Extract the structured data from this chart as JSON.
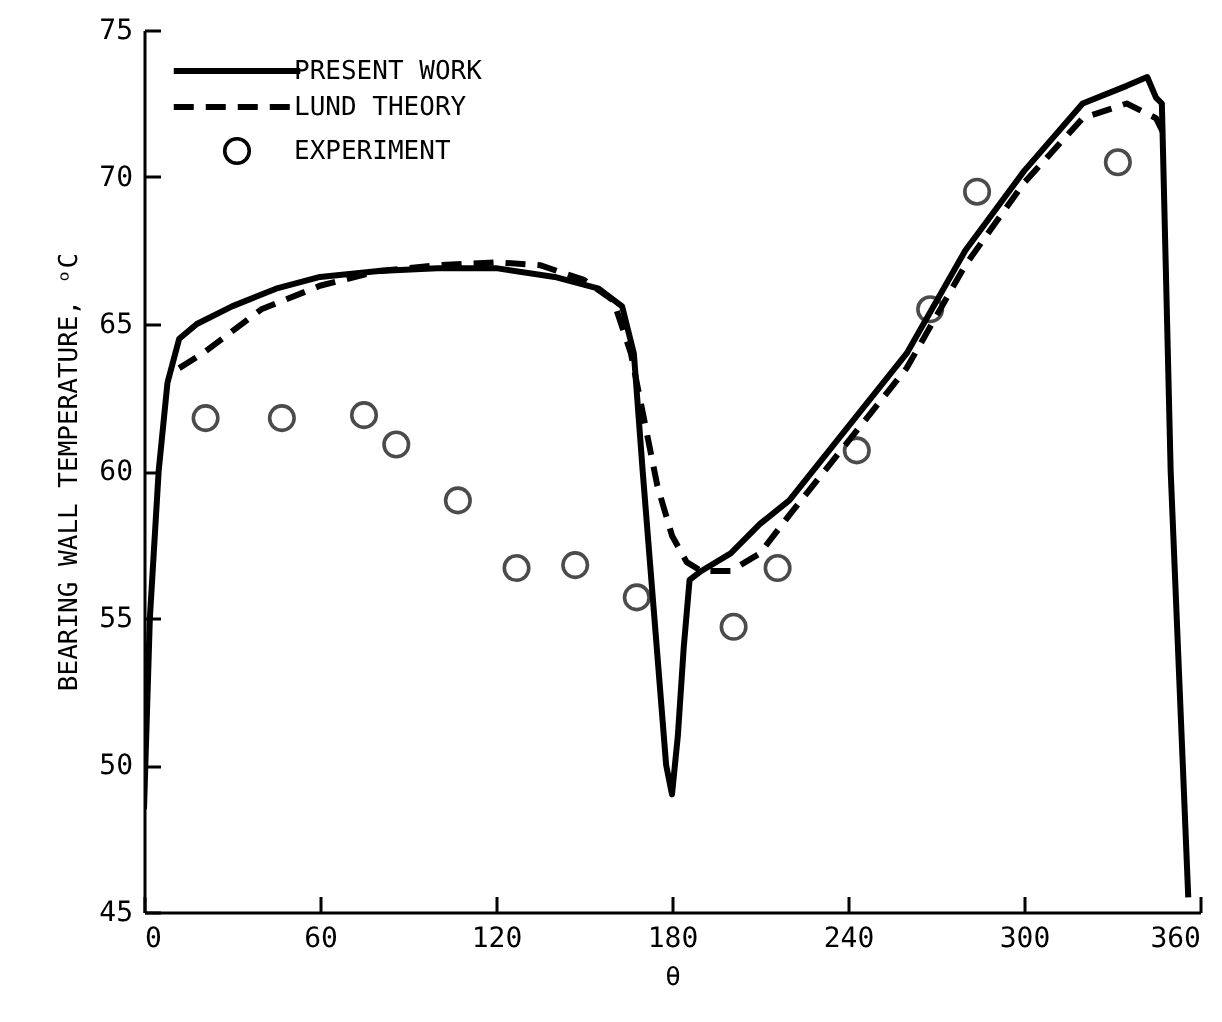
{
  "chart_data": {
    "type": "line",
    "xlabel": "θ",
    "ylabel": "BEARING WALL TEMPERATURE, ᵒC",
    "xlim": [
      0,
      360
    ],
    "xticks": [
      0,
      60,
      120,
      180,
      240,
      300,
      360
    ],
    "ylim": [
      45,
      75
    ],
    "yticks": [
      45,
      50,
      55,
      60,
      65,
      70,
      75
    ],
    "grid": false,
    "legend": "top left",
    "series": [
      {
        "name": "PRESENT WORK",
        "line_style": "solid",
        "color": "#000000",
        "x": [
          0,
          2,
          5,
          8,
          12,
          18,
          30,
          45,
          60,
          80,
          100,
          120,
          140,
          155,
          163,
          167,
          170,
          174,
          178,
          180,
          182,
          184,
          186,
          190,
          200,
          210,
          220,
          240,
          260,
          280,
          300,
          320,
          335,
          342,
          345,
          347,
          350,
          356
        ],
        "values": [
          48.5,
          55,
          60,
          63,
          64.5,
          65,
          65.6,
          66.2,
          66.6,
          66.8,
          66.9,
          66.9,
          66.6,
          66.2,
          65.6,
          64,
          60,
          55,
          50,
          49,
          51,
          54,
          56.3,
          56.6,
          57.2,
          58.2,
          59,
          61.5,
          64,
          67.5,
          70.2,
          72.5,
          73.1,
          73.4,
          72.7,
          72.5,
          60,
          45.5
        ]
      },
      {
        "name": "LUND THEORY",
        "line_style": "dashed",
        "color": "#000000",
        "x": [
          12,
          20,
          40,
          60,
          80,
          100,
          120,
          135,
          150,
          160,
          166,
          170,
          175,
          180,
          185,
          190,
          200,
          210,
          220,
          240,
          260,
          280,
          300,
          320,
          335,
          345,
          348
        ],
        "values": [
          63.5,
          64,
          65.5,
          66.3,
          66.8,
          67,
          67.1,
          67,
          66.5,
          65.8,
          64,
          62,
          59.5,
          57.8,
          56.9,
          56.6,
          56.6,
          57.2,
          58.5,
          61,
          63.5,
          67,
          69.8,
          72,
          72.5,
          72,
          71.4
        ]
      },
      {
        "name": "EXPERIMENT",
        "type": "scatter",
        "marker": "circle",
        "color": "#000000",
        "x": [
          21,
          47,
          75,
          86,
          107,
          127,
          147,
          168,
          201,
          216,
          243,
          268,
          284,
          332
        ],
        "values": [
          61.8,
          61.8,
          61.9,
          60.9,
          59,
          56.7,
          56.8,
          55.7,
          54.7,
          56.7,
          60.7,
          65.5,
          69.5,
          70.5
        ]
      }
    ]
  }
}
